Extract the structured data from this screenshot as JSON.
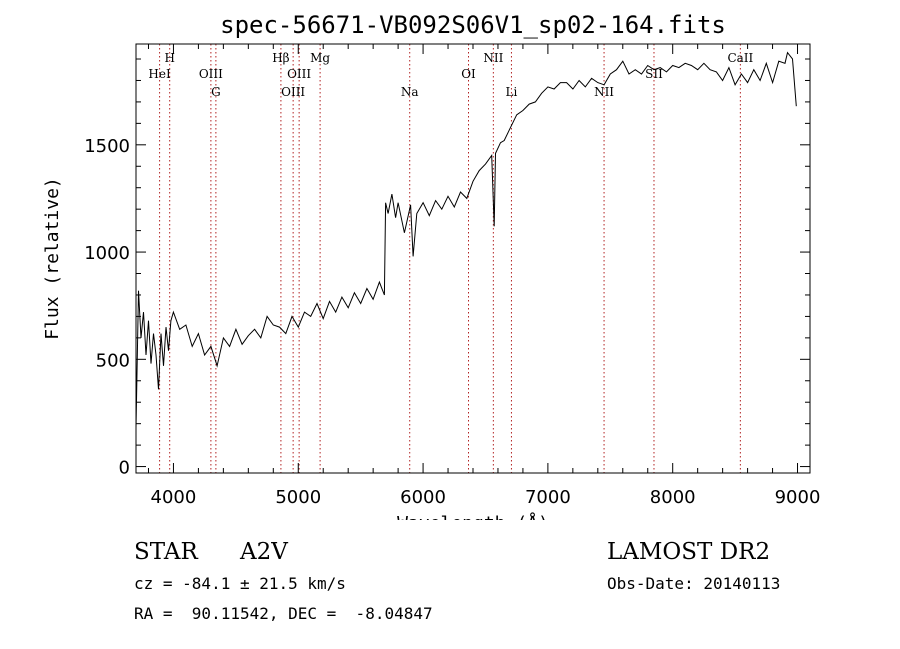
{
  "chart_data": {
    "type": "line",
    "title": "spec-56671-VB092S06V1_sp02-164.fits",
    "xlabel": "Wavelength (Å)",
    "ylabel": "Flux (relative)",
    "xlim": [
      3700,
      9100
    ],
    "ylim": [
      -30,
      1970
    ],
    "x_ticks": [
      4000,
      5000,
      6000,
      7000,
      8000,
      9000
    ],
    "y_ticks": [
      0,
      500,
      1000,
      1500
    ],
    "grid": false,
    "legend": "none",
    "series": [
      {
        "points": [
          [
            3700,
            180
          ],
          [
            3720,
            820
          ],
          [
            3740,
            600
          ],
          [
            3760,
            720
          ],
          [
            3780,
            520
          ],
          [
            3800,
            680
          ],
          [
            3820,
            480
          ],
          [
            3840,
            620
          ],
          [
            3860,
            520
          ],
          [
            3880,
            360
          ],
          [
            3900,
            620
          ],
          [
            3920,
            470
          ],
          [
            3940,
            650
          ],
          [
            3960,
            540
          ],
          [
            3980,
            680
          ],
          [
            4000,
            720
          ],
          [
            4050,
            640
          ],
          [
            4100,
            660
          ],
          [
            4150,
            560
          ],
          [
            4200,
            620
          ],
          [
            4250,
            520
          ],
          [
            4300,
            560
          ],
          [
            4350,
            470
          ],
          [
            4400,
            600
          ],
          [
            4450,
            560
          ],
          [
            4500,
            640
          ],
          [
            4550,
            570
          ],
          [
            4600,
            610
          ],
          [
            4650,
            640
          ],
          [
            4700,
            600
          ],
          [
            4750,
            700
          ],
          [
            4800,
            660
          ],
          [
            4850,
            650
          ],
          [
            4900,
            620
          ],
          [
            4950,
            700
          ],
          [
            5000,
            650
          ],
          [
            5050,
            720
          ],
          [
            5100,
            700
          ],
          [
            5150,
            760
          ],
          [
            5200,
            690
          ],
          [
            5250,
            770
          ],
          [
            5300,
            720
          ],
          [
            5350,
            790
          ],
          [
            5400,
            740
          ],
          [
            5450,
            810
          ],
          [
            5500,
            760
          ],
          [
            5550,
            830
          ],
          [
            5600,
            780
          ],
          [
            5650,
            860
          ],
          [
            5690,
            800
          ],
          [
            5700,
            1230
          ],
          [
            5720,
            1180
          ],
          [
            5750,
            1270
          ],
          [
            5780,
            1160
          ],
          [
            5800,
            1230
          ],
          [
            5850,
            1090
          ],
          [
            5900,
            1220
          ],
          [
            5920,
            980
          ],
          [
            5950,
            1180
          ],
          [
            6000,
            1230
          ],
          [
            6050,
            1170
          ],
          [
            6100,
            1240
          ],
          [
            6150,
            1200
          ],
          [
            6200,
            1260
          ],
          [
            6250,
            1210
          ],
          [
            6300,
            1280
          ],
          [
            6350,
            1250
          ],
          [
            6400,
            1330
          ],
          [
            6450,
            1380
          ],
          [
            6500,
            1410
          ],
          [
            6550,
            1450
          ],
          [
            6570,
            1120
          ],
          [
            6580,
            1460
          ],
          [
            6620,
            1510
          ],
          [
            6650,
            1520
          ],
          [
            6700,
            1580
          ],
          [
            6750,
            1640
          ],
          [
            6800,
            1660
          ],
          [
            6850,
            1690
          ],
          [
            6900,
            1700
          ],
          [
            6950,
            1740
          ],
          [
            7000,
            1770
          ],
          [
            7050,
            1760
          ],
          [
            7100,
            1790
          ],
          [
            7150,
            1790
          ],
          [
            7200,
            1760
          ],
          [
            7250,
            1800
          ],
          [
            7300,
            1770
          ],
          [
            7350,
            1810
          ],
          [
            7400,
            1790
          ],
          [
            7450,
            1780
          ],
          [
            7500,
            1830
          ],
          [
            7550,
            1850
          ],
          [
            7600,
            1890
          ],
          [
            7650,
            1830
          ],
          [
            7700,
            1850
          ],
          [
            7750,
            1830
          ],
          [
            7800,
            1870
          ],
          [
            7850,
            1850
          ],
          [
            7900,
            1860
          ],
          [
            7950,
            1840
          ],
          [
            8000,
            1870
          ],
          [
            8050,
            1860
          ],
          [
            8100,
            1880
          ],
          [
            8150,
            1870
          ],
          [
            8200,
            1850
          ],
          [
            8250,
            1880
          ],
          [
            8300,
            1850
          ],
          [
            8350,
            1840
          ],
          [
            8400,
            1800
          ],
          [
            8450,
            1860
          ],
          [
            8500,
            1780
          ],
          [
            8550,
            1830
          ],
          [
            8600,
            1790
          ],
          [
            8650,
            1850
          ],
          [
            8700,
            1800
          ],
          [
            8750,
            1880
          ],
          [
            8800,
            1790
          ],
          [
            8850,
            1890
          ],
          [
            8900,
            1880
          ],
          [
            8920,
            1930
          ],
          [
            8960,
            1900
          ],
          [
            8990,
            1680
          ]
        ]
      }
    ],
    "annotations": [
      {
        "label": "HeI",
        "x": 3889,
        "row": 2
      },
      {
        "label": "H",
        "x": 3970,
        "row": 1
      },
      {
        "label": "OIII",
        "x": 4300,
        "row": 2
      },
      {
        "label": "G",
        "x": 4340,
        "row": 3
      },
      {
        "label": "Hβ",
        "x": 4861,
        "row": 1
      },
      {
        "label": "OIII",
        "x": 4959,
        "row": 3
      },
      {
        "label": "OIII",
        "x": 5007,
        "row": 2
      },
      {
        "label": "Mg",
        "x": 5175,
        "row": 1
      },
      {
        "label": "Na",
        "x": 5893,
        "row": 3
      },
      {
        "label": "OI",
        "x": 6364,
        "row": 2
      },
      {
        "label": "NII",
        "x": 6563,
        "row": 1
      },
      {
        "label": "Li",
        "x": 6708,
        "row": 3
      },
      {
        "label": "NII",
        "x": 7450,
        "row": 3
      },
      {
        "label": "SII",
        "x": 7850,
        "row": 2
      },
      {
        "label": "CaII",
        "x": 8542,
        "row": 1
      }
    ]
  },
  "info": {
    "object_type": "STAR",
    "spectral_class": "A2V",
    "survey": "LAMOST DR2",
    "redshift": "cz = -84.1 ± 21.5 km/s",
    "obs_date": "Obs-Date: 20140113",
    "coordinates": "RA =  90.11542, DEC =  -8.04847"
  },
  "colors": {
    "axis": "#000000",
    "spectrum": "#000000",
    "line_marker": "#b22222",
    "background": "#ffffff"
  }
}
